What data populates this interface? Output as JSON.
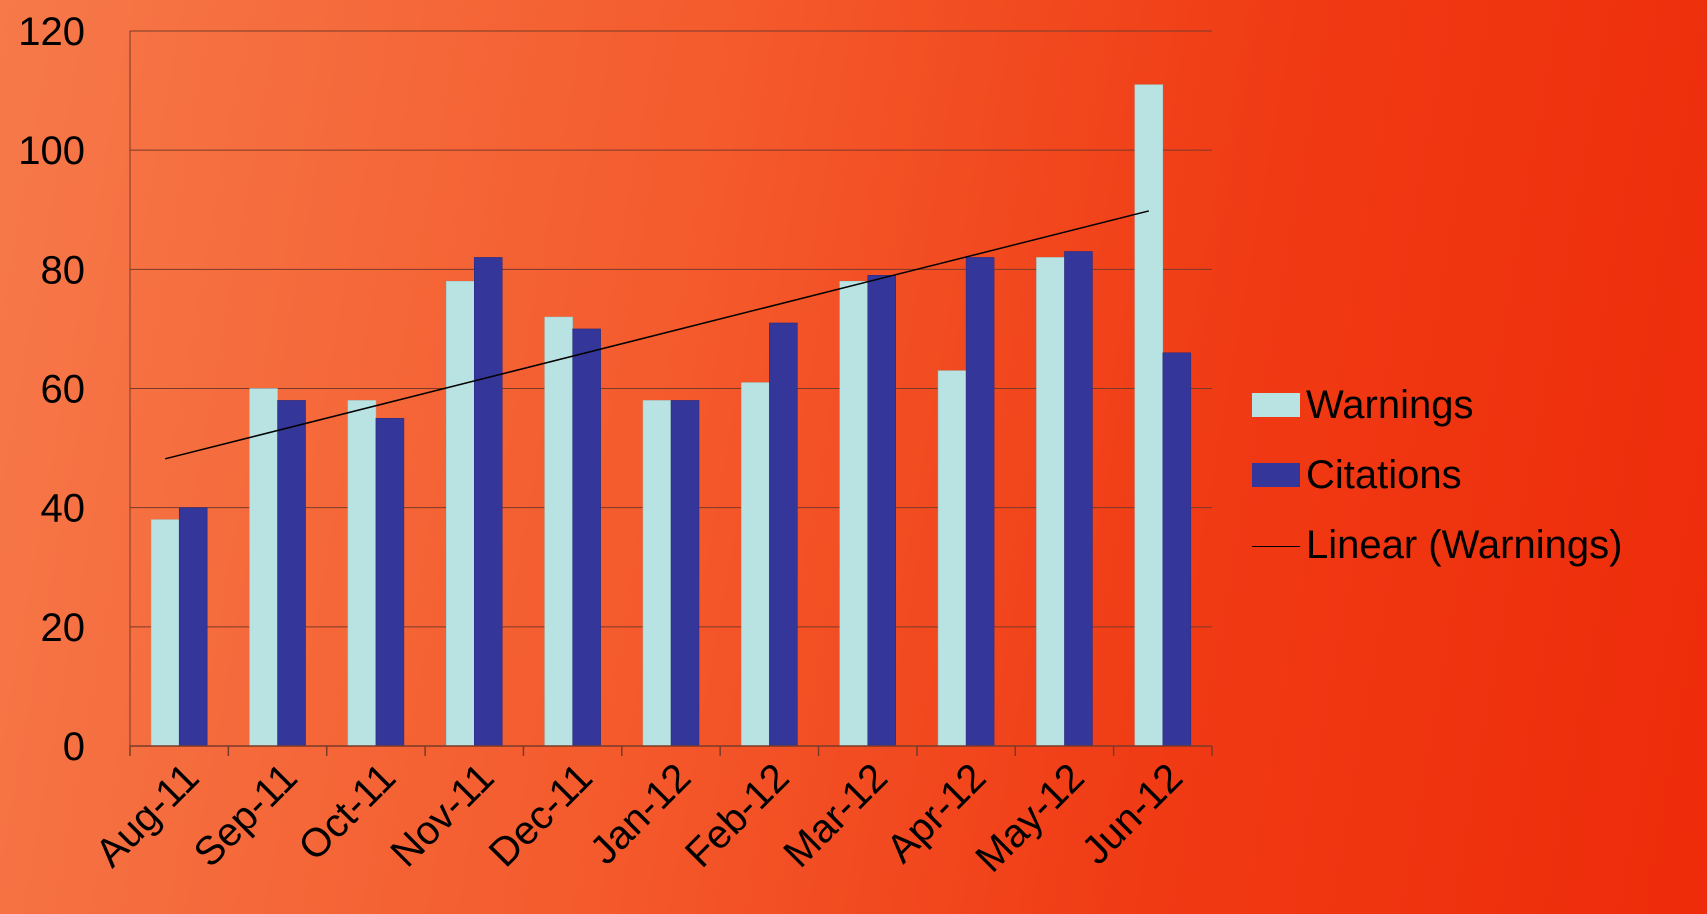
{
  "chart_data": {
    "type": "bar",
    "categories": [
      "Aug-11",
      "Sep-11",
      "Oct-11",
      "Nov-11",
      "Dec-11",
      "Jan-12",
      "Feb-12",
      "Mar-12",
      "Apr-12",
      "May-12",
      "Jun-12"
    ],
    "series": [
      {
        "name": "Warnings",
        "values": [
          38,
          60,
          58,
          78,
          72,
          58,
          61,
          78,
          63,
          82,
          111
        ],
        "color": "#b9e2e2"
      },
      {
        "name": "Citations",
        "values": [
          40,
          58,
          55,
          82,
          70,
          58,
          71,
          79,
          82,
          83,
          66
        ],
        "color": "#35369a"
      }
    ],
    "trendline": {
      "name": "Linear (Warnings)",
      "start": 48.2,
      "end": 89.8,
      "color": "#000000"
    },
    "ylim": [
      0,
      120
    ],
    "yticks": [
      0,
      20,
      40,
      60,
      80,
      100,
      120
    ],
    "grid": true,
    "legend_position": "right"
  }
}
